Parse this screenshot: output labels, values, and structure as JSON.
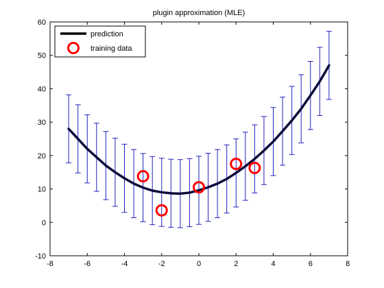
{
  "chart_data": {
    "type": "line",
    "title": "plugin approximation (MLE)",
    "xlabel": "",
    "ylabel": "",
    "xlim": [
      -8,
      8
    ],
    "ylim": [
      -10,
      60
    ],
    "xticks": [
      -8,
      -6,
      -4,
      -2,
      0,
      2,
      4,
      6,
      8
    ],
    "yticks": [
      -10,
      0,
      10,
      20,
      30,
      40,
      50,
      60
    ],
    "grid": false,
    "legend_position": "top-left",
    "series": [
      {
        "name": "prediction",
        "style": "line-with-errorbars",
        "color": "#0b0b3b",
        "errorbar_color": "#1f1fbf",
        "x": [
          -7.0,
          -6.5,
          -6.0,
          -5.5,
          -5.0,
          -4.5,
          -4.0,
          -3.5,
          -3.0,
          -2.5,
          -2.0,
          -1.5,
          -1.0,
          -0.5,
          0.0,
          0.5,
          1.0,
          1.5,
          2.0,
          2.5,
          3.0,
          3.5,
          4.0,
          4.5,
          5.0,
          5.5,
          6.0,
          6.5,
          7.0
        ],
        "y": [
          28.0,
          25.0,
          22.0,
          19.5,
          17.0,
          15.0,
          13.2,
          11.6,
          10.4,
          9.5,
          9.0,
          8.7,
          8.6,
          8.9,
          9.6,
          10.5,
          11.6,
          13.0,
          14.8,
          16.8,
          19.0,
          21.5,
          24.2,
          27.3,
          30.5,
          34.0,
          38.0,
          42.2,
          47.0
        ],
        "err": [
          10.2,
          10.2,
          10.2,
          10.2,
          10.2,
          10.2,
          10.2,
          10.2,
          10.2,
          10.2,
          10.2,
          10.2,
          10.2,
          10.2,
          10.2,
          10.2,
          10.2,
          10.2,
          10.2,
          10.2,
          10.2,
          10.2,
          10.2,
          10.2,
          10.2,
          10.2,
          10.2,
          10.2,
          10.2
        ]
      },
      {
        "name": "training data",
        "style": "markers",
        "color": "#ff0000",
        "x": [
          -3.0,
          -2.0,
          0.0,
          2.0,
          3.0
        ],
        "y": [
          13.8,
          3.6,
          10.5,
          17.5,
          16.3
        ]
      }
    ]
  }
}
